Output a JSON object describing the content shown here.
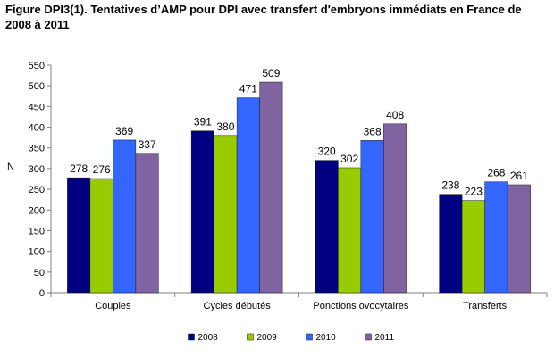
{
  "chart_data": {
    "type": "bar",
    "title": "Figure DPI3(1). Tentatives d’AMP pour DPI avec transfert d'embryons immédiats en France de 2008 à 2011",
    "xlabel": "",
    "ylabel": "N",
    "ylim": [
      0,
      550
    ],
    "yticks": [
      0,
      50,
      100,
      150,
      200,
      250,
      300,
      350,
      400,
      450,
      500,
      550
    ],
    "grid": false,
    "legend_position": "bottom",
    "categories": [
      "Couples",
      "Cycles débutés",
      "Ponctions ovocytaires",
      "Transferts"
    ],
    "series": [
      {
        "name": "2008",
        "color": "#000080",
        "values": [
          278,
          391,
          320,
          238
        ]
      },
      {
        "name": "2009",
        "color": "#99CC00",
        "values": [
          276,
          380,
          302,
          223
        ]
      },
      {
        "name": "2010",
        "color": "#3366FF",
        "values": [
          369,
          471,
          368,
          268
        ]
      },
      {
        "name": "2011",
        "color": "#8064A2",
        "values": [
          337,
          509,
          408,
          261
        ]
      }
    ]
  }
}
